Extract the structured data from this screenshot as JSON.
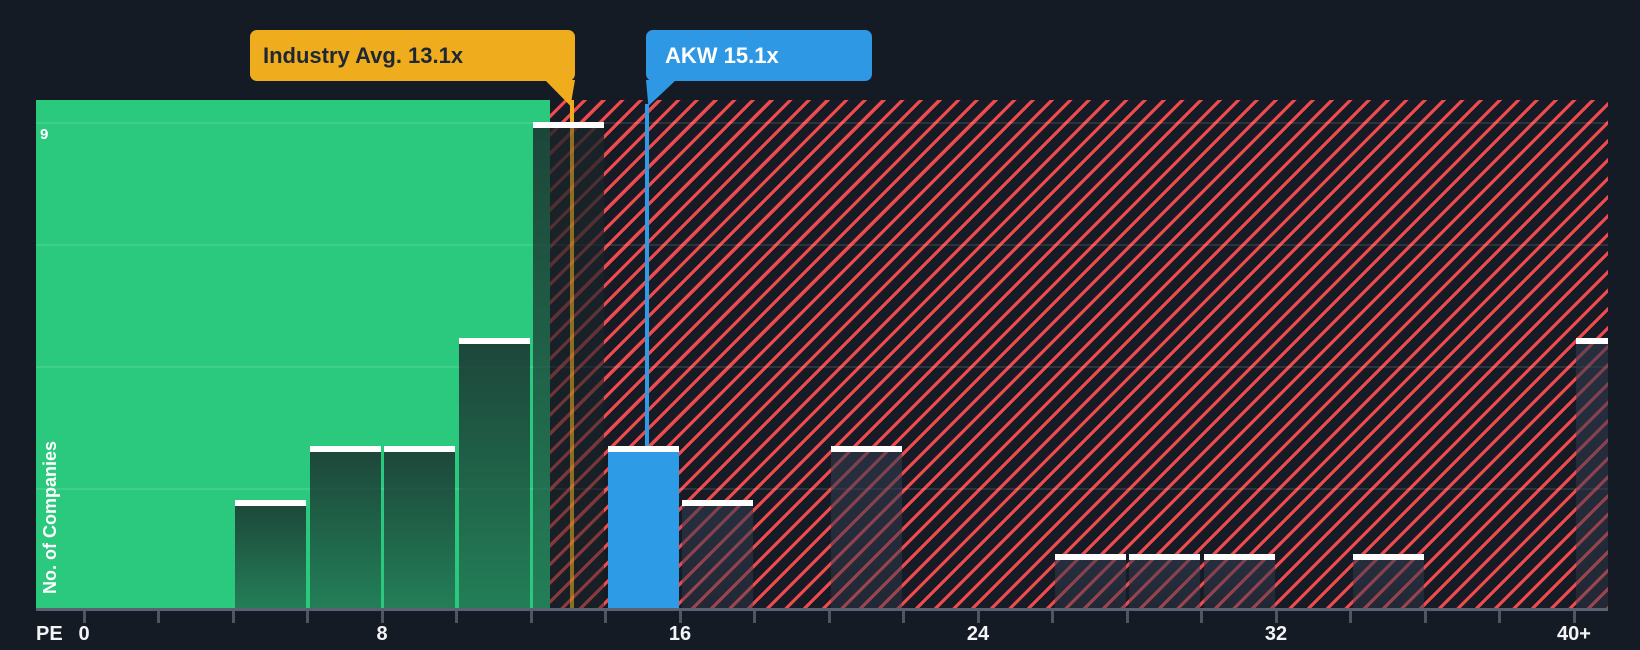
{
  "colors": {
    "background": "#151B25",
    "green_zone": "#2BC97E",
    "red_hatch_stripe": "#EF4B4F",
    "company_blue": "#2E9BE6",
    "industry_orange": "#EFAD1E",
    "axis_line_gray": "#5A6170",
    "bar_cap_white": "#FFFFFF"
  },
  "callouts": {
    "industry": {
      "label": "Industry Avg. 13.1x",
      "x_value": 13.1
    },
    "company": {
      "label": "AKW 15.1x",
      "x_value": 15.1
    }
  },
  "axis": {
    "x_title": "PE",
    "y_title": "No. of Companies",
    "y_max_label": "9",
    "x_labels": [
      {
        "u": 0,
        "text": "0"
      },
      {
        "u": 8,
        "text": "8"
      },
      {
        "u": 16,
        "text": "16"
      },
      {
        "u": 24,
        "text": "24"
      },
      {
        "u": 32,
        "text": "32"
      },
      {
        "u": 40,
        "text": "40+"
      }
    ]
  },
  "chart_data": {
    "type": "bar",
    "title": "PE ratio histogram: AKW vs Industry Average",
    "xlabel": "PE",
    "ylabel": "No. of Companies",
    "x_range": [
      0,
      42
    ],
    "y_range": [
      0,
      9
    ],
    "bin_width_pe": 2,
    "grid": "horizontal-faint",
    "legend_position": "none",
    "bins": [
      {
        "pe_start": 4,
        "pe_end": 6,
        "count": 2,
        "zone": "green"
      },
      {
        "pe_start": 6,
        "pe_end": 8,
        "count": 3,
        "zone": "green"
      },
      {
        "pe_start": 8,
        "pe_end": 10,
        "count": 3,
        "zone": "green"
      },
      {
        "pe_start": 10,
        "pe_end": 12,
        "count": 5,
        "zone": "green"
      },
      {
        "pe_start": 12,
        "pe_end": 14,
        "count": 9,
        "zone": "green"
      },
      {
        "pe_start": 14,
        "pe_end": 16,
        "count": 3,
        "zone": "company"
      },
      {
        "pe_start": 16,
        "pe_end": 18,
        "count": 2,
        "zone": "red"
      },
      {
        "pe_start": 20,
        "pe_end": 22,
        "count": 3,
        "zone": "red"
      },
      {
        "pe_start": 26,
        "pe_end": 28,
        "count": 1,
        "zone": "red"
      },
      {
        "pe_start": 28,
        "pe_end": 30,
        "count": 1,
        "zone": "red"
      },
      {
        "pe_start": 30,
        "pe_end": 32,
        "count": 1,
        "zone": "red"
      },
      {
        "pe_start": 34,
        "pe_end": 36,
        "count": 1,
        "zone": "red"
      },
      {
        "pe_start": 40,
        "pe_end": 42,
        "count": 5,
        "zone": "red",
        "open_ended": true
      }
    ],
    "markers": [
      {
        "name": "industry_avg",
        "x": 13.1,
        "label": "Industry Avg. 13.1x",
        "color": "#EFAD1E"
      },
      {
        "name": "company_akw",
        "x": 15.1,
        "label": "AKW 15.1x",
        "color": "#2E9BE6"
      }
    ],
    "green_zone_end_pe": 12.5
  }
}
